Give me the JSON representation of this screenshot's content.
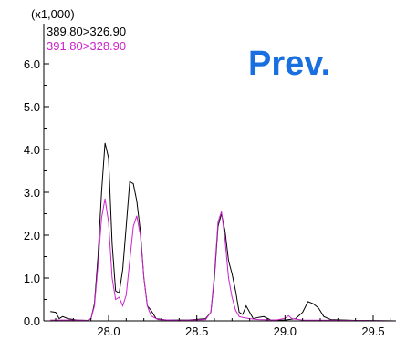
{
  "chart_data": {
    "type": "line",
    "title": "",
    "xlabel": "",
    "ylabel": "",
    "y_scale_label": "(x1,000)",
    "annotation": "Prev.",
    "annotation_color": "#1a6fe0",
    "xlim": [
      27.67,
      29.67
    ],
    "ylim": [
      0.0,
      6.5
    ],
    "x_ticks": [
      28.0,
      28.5,
      29.0,
      29.5
    ],
    "x_tick_labels": [
      "28.0",
      "28.5",
      "29.0",
      "29.5"
    ],
    "y_ticks": [
      0.0,
      1.0,
      2.0,
      3.0,
      4.0,
      5.0,
      6.0
    ],
    "y_tick_labels": [
      "0.0",
      "1.0",
      "2.0",
      "3.0",
      "4.0",
      "5.0",
      "6.0"
    ],
    "grid": false,
    "legend_position": "top-left",
    "series": [
      {
        "name": "389.80>326.90",
        "color": "#000000",
        "points": [
          [
            27.67,
            0.22
          ],
          [
            27.7,
            0.2
          ],
          [
            27.72,
            0.05
          ],
          [
            27.74,
            0.1
          ],
          [
            27.77,
            0.05
          ],
          [
            27.82,
            0.02
          ],
          [
            27.88,
            0.01
          ],
          [
            27.9,
            0.05
          ],
          [
            27.92,
            0.4
          ],
          [
            27.94,
            1.5
          ],
          [
            27.96,
            3.0
          ],
          [
            27.98,
            4.15
          ],
          [
            28.0,
            3.8
          ],
          [
            28.02,
            1.8
          ],
          [
            28.04,
            0.7
          ],
          [
            28.06,
            0.65
          ],
          [
            28.08,
            1.2
          ],
          [
            28.1,
            2.2
          ],
          [
            28.12,
            3.25
          ],
          [
            28.14,
            3.2
          ],
          [
            28.16,
            2.8
          ],
          [
            28.18,
            2.1
          ],
          [
            28.2,
            1.0
          ],
          [
            28.22,
            0.35
          ],
          [
            28.24,
            0.25
          ],
          [
            28.27,
            0.05
          ],
          [
            28.33,
            0.02
          ],
          [
            28.45,
            0.02
          ],
          [
            28.55,
            0.05
          ],
          [
            28.58,
            0.2
          ],
          [
            28.6,
            1.0
          ],
          [
            28.62,
            2.2
          ],
          [
            28.64,
            2.5
          ],
          [
            28.66,
            2.1
          ],
          [
            28.68,
            1.4
          ],
          [
            28.7,
            1.1
          ],
          [
            28.72,
            0.7
          ],
          [
            28.74,
            0.2
          ],
          [
            28.76,
            0.15
          ],
          [
            28.78,
            0.35
          ],
          [
            28.8,
            0.2
          ],
          [
            28.82,
            0.05
          ],
          [
            28.85,
            0.08
          ],
          [
            28.88,
            0.1
          ],
          [
            28.92,
            0.02
          ],
          [
            29.0,
            0.02
          ],
          [
            29.06,
            0.05
          ],
          [
            29.1,
            0.2
          ],
          [
            29.13,
            0.45
          ],
          [
            29.16,
            0.4
          ],
          [
            29.19,
            0.3
          ],
          [
            29.22,
            0.1
          ],
          [
            29.26,
            0.03
          ],
          [
            29.4,
            0.01
          ],
          [
            29.67,
            0.0
          ]
        ]
      },
      {
        "name": "391.80>328.90",
        "color": "#cc22cc",
        "points": [
          [
            27.67,
            0.02
          ],
          [
            27.8,
            0.02
          ],
          [
            27.88,
            0.01
          ],
          [
            27.9,
            0.05
          ],
          [
            27.92,
            0.35
          ],
          [
            27.94,
            1.3
          ],
          [
            27.96,
            2.4
          ],
          [
            27.98,
            2.85
          ],
          [
            28.0,
            2.3
          ],
          [
            28.02,
            1.0
          ],
          [
            28.04,
            0.5
          ],
          [
            28.06,
            0.55
          ],
          [
            28.08,
            0.35
          ],
          [
            28.1,
            0.6
          ],
          [
            28.12,
            1.4
          ],
          [
            28.14,
            2.2
          ],
          [
            28.16,
            2.45
          ],
          [
            28.18,
            2.0
          ],
          [
            28.2,
            1.0
          ],
          [
            28.22,
            0.35
          ],
          [
            28.24,
            0.12
          ],
          [
            28.28,
            0.03
          ],
          [
            28.4,
            0.01
          ],
          [
            28.55,
            0.03
          ],
          [
            28.58,
            0.2
          ],
          [
            28.6,
            1.1
          ],
          [
            28.62,
            2.3
          ],
          [
            28.64,
            2.55
          ],
          [
            28.66,
            1.9
          ],
          [
            28.68,
            1.0
          ],
          [
            28.7,
            0.55
          ],
          [
            28.72,
            0.25
          ],
          [
            28.74,
            0.1
          ],
          [
            28.76,
            0.08
          ],
          [
            28.8,
            0.05
          ],
          [
            28.85,
            0.03
          ],
          [
            28.95,
            0.02
          ],
          [
            29.0,
            0.06
          ],
          [
            29.02,
            0.12
          ],
          [
            29.04,
            0.05
          ],
          [
            29.1,
            0.02
          ],
          [
            29.67,
            0.0
          ]
        ]
      }
    ]
  }
}
